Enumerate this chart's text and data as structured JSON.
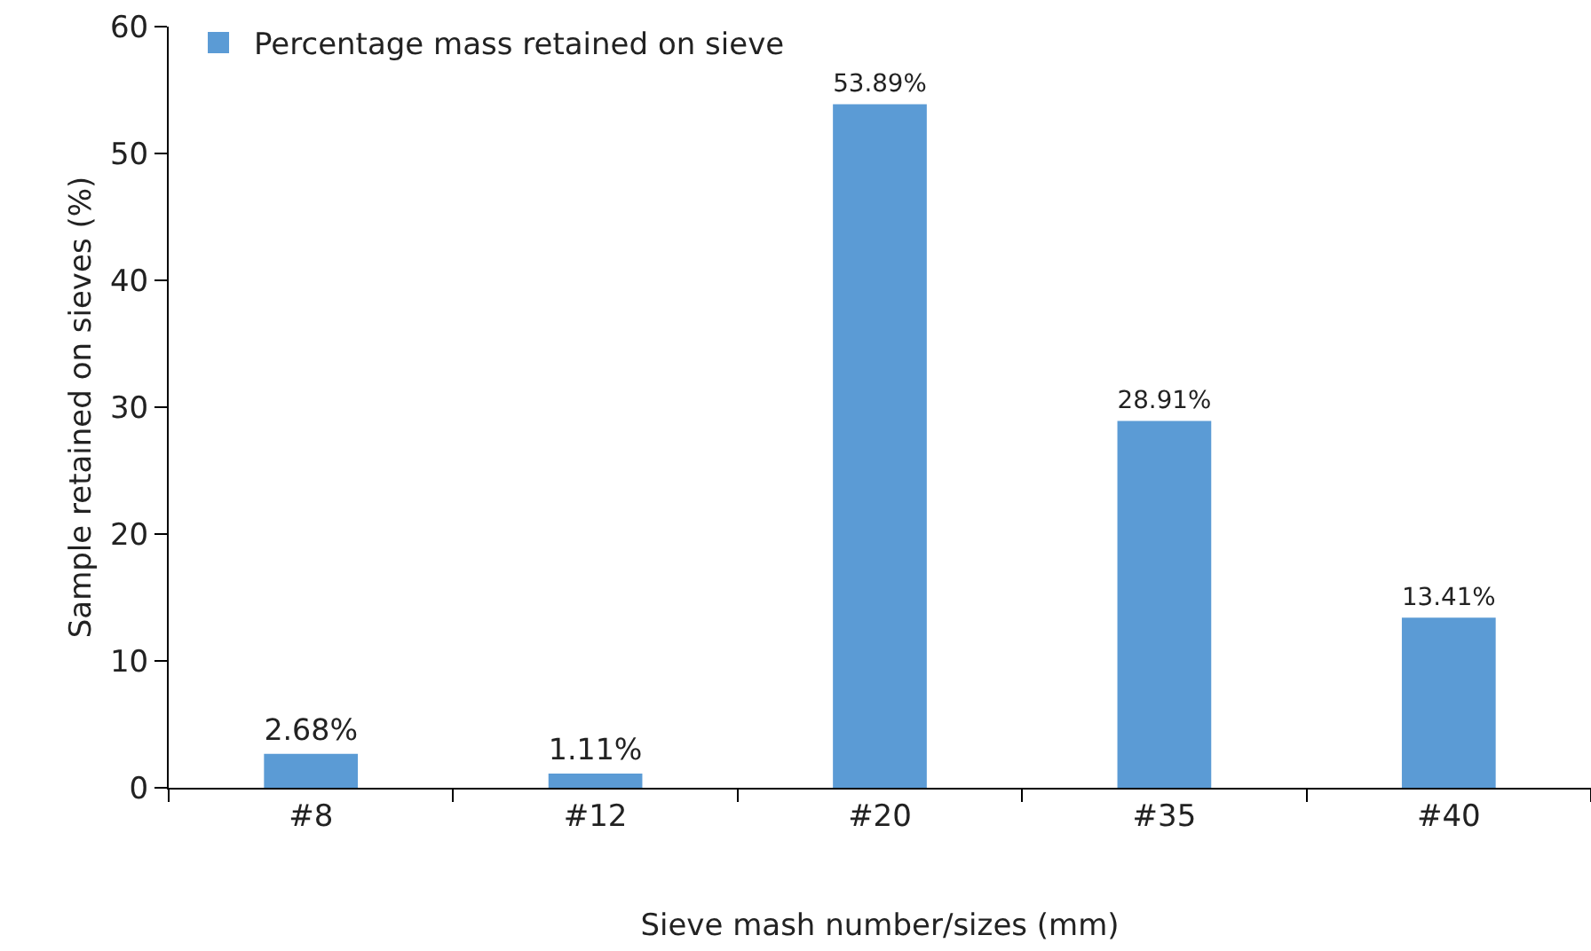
{
  "chart_data": {
    "type": "bar",
    "xlabel": "Sieve mash number/sizes (mm)",
    "ylabel": "Sample retained on sieves (%)",
    "categories": [
      "#8",
      "#12",
      "#20",
      "#35",
      "#40"
    ],
    "series": [
      {
        "name": "Percentage mass retained on sieve",
        "color": "#5b9bd5",
        "values": [
          2.68,
          1.11,
          53.89,
          28.91,
          13.41
        ],
        "value_labels": [
          "2.68%",
          "1.11%",
          "53.89%",
          "28.91%",
          "13.41%"
        ]
      }
    ],
    "ylim": [
      0,
      60
    ],
    "yticks": [
      0,
      10,
      20,
      30,
      40,
      50,
      60
    ],
    "grid": false,
    "legend": "top left"
  }
}
